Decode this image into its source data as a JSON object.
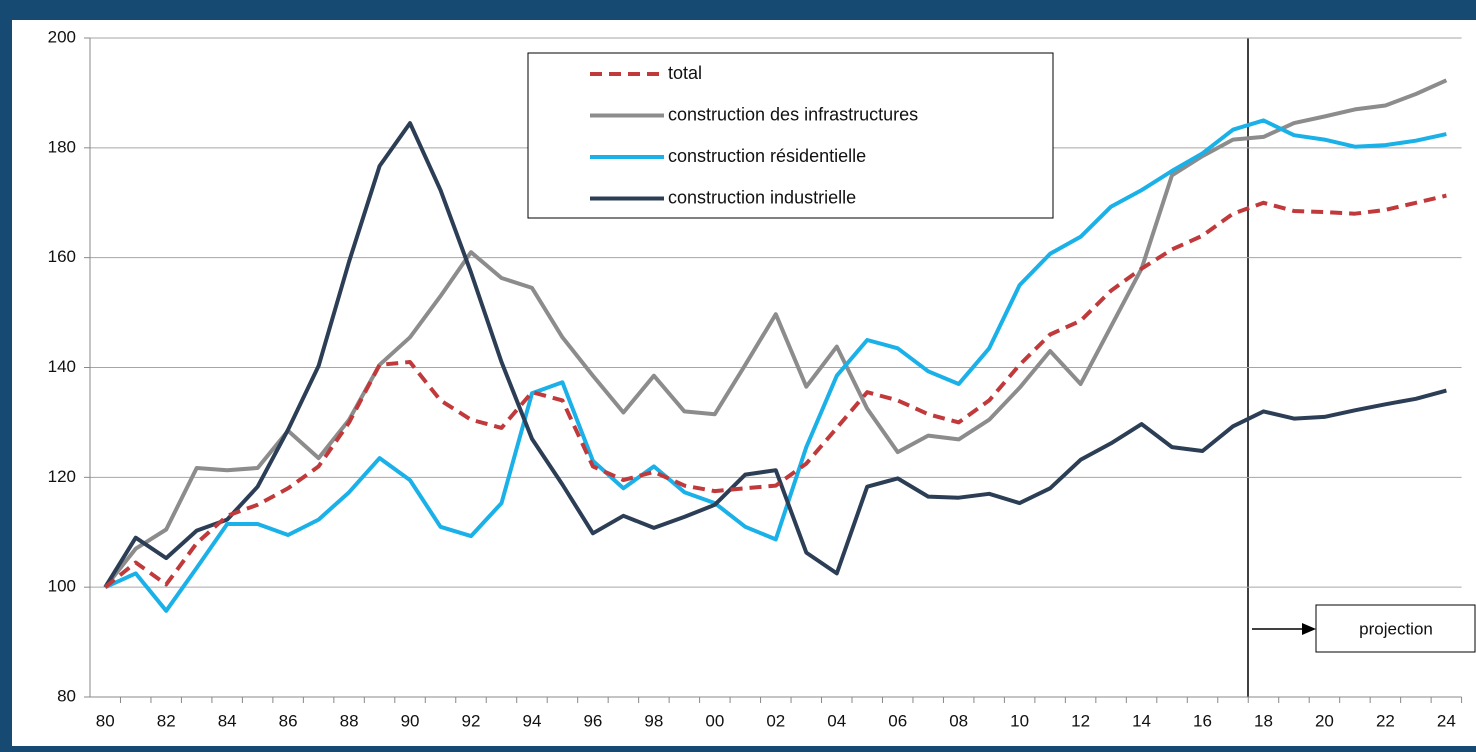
{
  "chart_data": {
    "type": "line",
    "categories": [
      "80",
      null,
      "82",
      null,
      "84",
      null,
      "86",
      null,
      "88",
      null,
      "90",
      null,
      "92",
      null,
      "94",
      null,
      "96",
      null,
      "98",
      null,
      "00",
      null,
      "02",
      null,
      "04",
      null,
      "06",
      null,
      "08",
      null,
      "10",
      null,
      "12",
      null,
      "14",
      null,
      "16",
      null,
      "18",
      null,
      "20",
      null,
      "22",
      null,
      "24"
    ],
    "series": [
      {
        "name": "total",
        "color": "#c0393b",
        "dashed": true,
        "values": [
          100,
          104.5,
          100.5,
          108,
          113,
          115,
          118,
          122,
          130,
          140.5,
          141,
          134,
          130.5,
          129,
          135.5,
          134,
          122,
          119.5,
          121,
          118.5,
          117.5,
          118,
          118.5,
          122.5,
          129,
          135.5,
          134,
          131.5,
          130,
          134,
          140.5,
          146,
          148.5,
          154,
          158,
          161.5,
          164,
          168,
          170,
          168.5,
          168.3,
          168,
          168.7,
          170,
          171.3
        ]
      },
      {
        "name": "construction des infrastructures",
        "color": "#8c8c8c",
        "values": [
          100,
          107,
          110.5,
          121.7,
          121.3,
          121.7,
          128.5,
          123.5,
          130.5,
          140.5,
          145.5,
          153,
          161,
          156.3,
          154.5,
          145.5,
          138.5,
          131.8,
          138.5,
          132,
          131.5,
          140.5,
          149.7,
          136.5,
          143.8,
          132.5,
          124.6,
          127.6,
          126.9,
          130.5,
          136.3,
          143,
          137,
          147.5,
          158,
          175,
          178.5,
          181.5,
          182,
          184.5,
          185.7,
          187,
          187.7,
          189.8,
          192.3
        ]
      },
      {
        "name": "construction résidentielle",
        "color": "#1ab0e8",
        "values": [
          100,
          102.5,
          95.7,
          103.5,
          111.5,
          111.5,
          109.5,
          112.3,
          117.3,
          123.5,
          119.5,
          111,
          109.3,
          115.3,
          135.3,
          137.3,
          123,
          118,
          122,
          117.3,
          115.3,
          111,
          108.7,
          125.5,
          138.5,
          145,
          143.5,
          139.3,
          137,
          143.5,
          155,
          160.7,
          163.8,
          169.3,
          172.3,
          175.8,
          179,
          183.3,
          185,
          182.3,
          181.5,
          180.2,
          180.5,
          181.3,
          182.5
        ]
      },
      {
        "name": "construction industrielle",
        "color": "#2c3e55",
        "values": [
          100,
          109,
          105.3,
          110.3,
          112.3,
          118.3,
          128.7,
          140.3,
          159.3,
          176.7,
          184.5,
          172.3,
          157.3,
          141,
          127,
          118.7,
          109.8,
          113,
          110.8,
          112.8,
          115,
          120.5,
          121.3,
          106.3,
          102.5,
          118.3,
          119.8,
          116.5,
          116.3,
          117,
          115.3,
          118,
          123.2,
          126.2,
          129.7,
          125.5,
          124.8,
          129.3,
          132,
          130.7,
          131,
          132.2,
          133.3,
          134.3,
          135.8
        ]
      }
    ],
    "ylim": [
      80,
      200
    ],
    "yticks": [
      80,
      100,
      120,
      140,
      160,
      180,
      200
    ],
    "grid": true,
    "annotation": "projection"
  }
}
